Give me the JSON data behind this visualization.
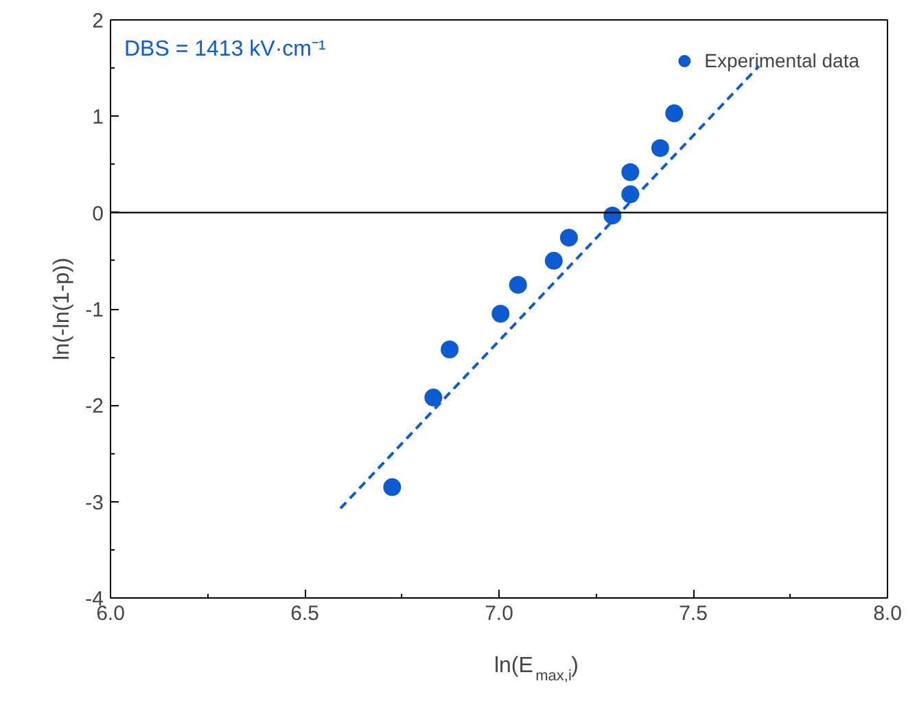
{
  "chart_data": {
    "type": "scatter",
    "xlabel": "ln(E$_{max,i}$)",
    "ylabel": "ln(-ln(1-p))",
    "annotations": [
      "DBS = 1413 kV·cm⁻¹"
    ],
    "xlim": [
      6.0,
      8.0
    ],
    "xticks": [
      {
        "value": 6,
        "label": "6.0"
      },
      6.5,
      {
        "value": 7,
        "label": "7.0"
      },
      7.5,
      {
        "value": 8,
        "label": "8.0"
      }
    ],
    "ylim": [
      -4,
      2
    ],
    "yticks": [
      -4,
      -3,
      -2,
      -1,
      0,
      1,
      2
    ],
    "legend": "top right",
    "grid": false,
    "marker": "circle",
    "ref_lines": [
      {
        "axis": "y",
        "value": 0,
        "color": "#000000",
        "line_style": "solid"
      }
    ],
    "series": [
      {
        "name": "Experimental data",
        "color": "#0d5bd1",
        "x": [
          6.725,
          6.831,
          6.873,
          7.004,
          7.049,
          7.141,
          7.18,
          7.292,
          7.338,
          7.338,
          7.415,
          7.451
        ],
        "values": [
          -2.85,
          -1.92,
          -1.42,
          -1.05,
          -0.75,
          -0.5,
          -0.26,
          -0.03,
          0.19,
          0.42,
          0.67,
          1.03
        ]
      },
      {
        "type": "line",
        "color": "#0d5bd1",
        "line_style": "dashed",
        "marker": "none",
        "x": [
          6.592,
          7.669
        ],
        "values": [
          -3.07,
          1.52
        ]
      }
    ]
  }
}
